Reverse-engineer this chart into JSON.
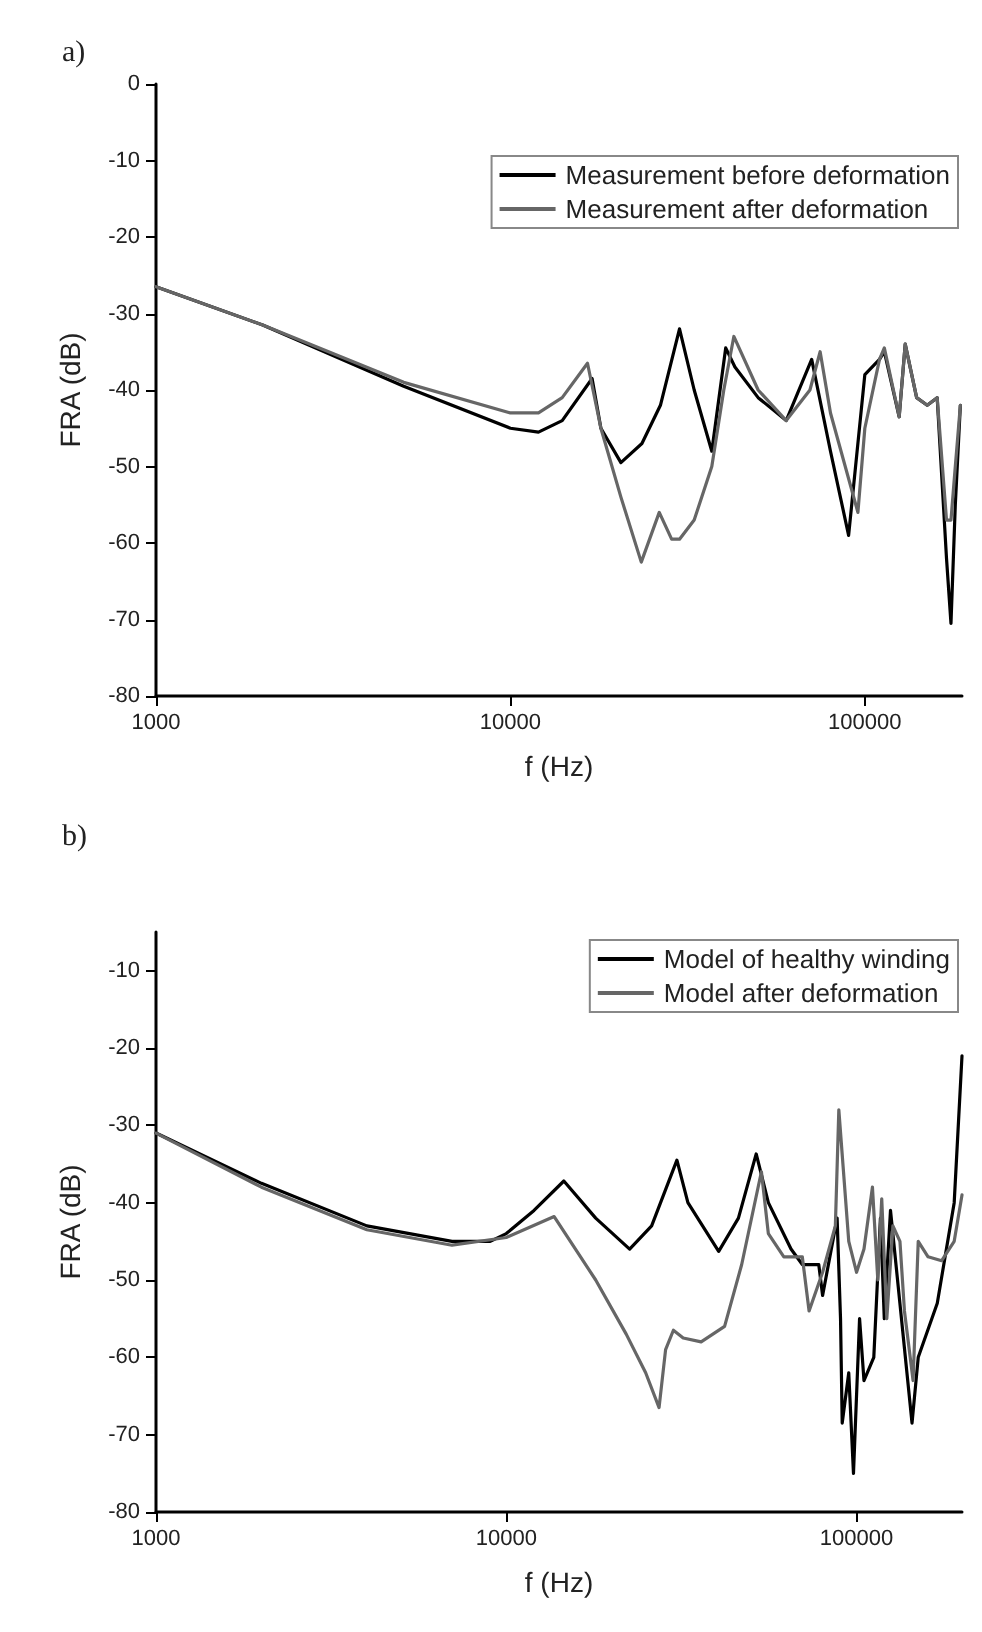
{
  "chart_data": [
    {
      "type": "line",
      "title": "a)",
      "xlabel": "f (Hz)",
      "ylabel": "FRA (dB)",
      "log": "x",
      "xlim": [
        1000,
        188000
      ],
      "xticks": [
        1000,
        10000,
        100000
      ],
      "ylim": [
        -80,
        0
      ],
      "yticks": [
        -80,
        -70,
        -60,
        -50,
        -40,
        -30,
        -20,
        -10,
        0
      ],
      "grid": false,
      "legend": "top right",
      "marker": "none",
      "line_style": "solid",
      "series": [
        {
          "name": "Measurement before deformation",
          "color": "#000000",
          "x": [
            1000,
            2000,
            5000,
            10000,
            12000,
            14000,
            17000,
            18000,
            20500,
            23500,
            26500,
            30000,
            33000,
            37000,
            40500,
            43000,
            50000,
            60000,
            70800,
            80000,
            90000,
            100000,
            110000,
            113500,
            125000,
            130000,
            140000,
            150000,
            160000,
            170000,
            175000,
            180000,
            186000
          ],
          "values": [
            -26.5,
            -31.5,
            -39.5,
            -45,
            -45.5,
            -44,
            -38.5,
            -45,
            -49.5,
            -47,
            -42,
            -32,
            -40,
            -48,
            -34.5,
            -37,
            -41,
            -44,
            -36,
            -48,
            -59,
            -38,
            -36,
            -35,
            -43.5,
            -34,
            -41,
            -42,
            -41,
            -62,
            -70.5,
            -55,
            -42
          ]
        },
        {
          "name": "Measurement after deformation",
          "color": "#666666",
          "x": [
            1000,
            2000,
            5000,
            10000,
            12000,
            14000,
            16500,
            18000,
            20500,
            23400,
            26300,
            28500,
            30000,
            33000,
            37000,
            40000,
            42700,
            50000,
            60000,
            70000,
            74800,
            80000,
            95600,
            100000,
            110000,
            113500,
            125000,
            130000,
            140000,
            150000,
            160000,
            170000,
            175000,
            180000,
            186000
          ],
          "values": [
            -26.5,
            -31.5,
            -39,
            -43,
            -43,
            -41,
            -36.5,
            -45,
            -54,
            -62.5,
            -56,
            -59.5,
            -59.5,
            -57,
            -50,
            -40,
            -33,
            -40,
            -44,
            -40,
            -35,
            -43,
            -56,
            -45,
            -36,
            -34.5,
            -43.5,
            -34,
            -41,
            -42,
            -41,
            -57,
            -57,
            -50,
            -42
          ]
        }
      ]
    },
    {
      "type": "line",
      "title": "b)",
      "xlabel": "f (Hz)",
      "ylabel": "FRA (dB)",
      "log": "x",
      "xlim": [
        1000,
        200000
      ],
      "xticks": [
        1000,
        10000,
        100000
      ],
      "ylim": [
        -80,
        -5
      ],
      "yticks": [
        -80,
        -70,
        -60,
        -50,
        -40,
        -30,
        -20,
        -10
      ],
      "grid": false,
      "legend": "top right",
      "marker": "none",
      "line_style": "solid",
      "series": [
        {
          "name": "Model of healthy winding",
          "color": "#000000",
          "x": [
            1000,
            2000,
            4000,
            7000,
            9000,
            10000,
            12000,
            14600,
            18000,
            22500,
            26000,
            30700,
            33000,
            40400,
            46000,
            51700,
            56000,
            65000,
            70000,
            78000,
            80000,
            88000,
            90000,
            91000,
            95000,
            98000,
            102000,
            105000,
            112000,
            117000,
            120000,
            125000,
            144000,
            150000,
            170000,
            190000,
            200000
          ],
          "values": [
            -31,
            -37.5,
            -43,
            -45,
            -45,
            -44,
            -41,
            -37.2,
            -42,
            -46,
            -43,
            -34.5,
            -40,
            -46.3,
            -42,
            -33.7,
            -40,
            -46,
            -48,
            -48,
            -52,
            -42,
            -55,
            -68.5,
            -62,
            -75,
            -55,
            -63,
            -60,
            -42,
            -55,
            -41,
            -68.5,
            -60,
            -53,
            -40,
            -21
          ]
        },
        {
          "name": "Model after deformation",
          "color": "#666666",
          "x": [
            1000,
            2000,
            4000,
            7000,
            10000,
            13700,
            18000,
            22000,
            25000,
            27300,
            28500,
            30000,
            32000,
            36000,
            42000,
            47000,
            53500,
            56000,
            62000,
            70000,
            73200,
            80000,
            87000,
            89000,
            95000,
            100000,
            105000,
            111000,
            115000,
            118000,
            122000,
            127000,
            133000,
            137000,
            145000,
            150000,
            160000,
            175000,
            190000,
            200000
          ],
          "values": [
            -31,
            -38,
            -43.5,
            -45.5,
            -44.5,
            -41.8,
            -50,
            -57,
            -62,
            -66.5,
            -59,
            -56.5,
            -57.5,
            -58,
            -56,
            -48,
            -36,
            -44,
            -47,
            -47,
            -54,
            -49,
            -43,
            -28,
            -45,
            -49,
            -46,
            -38,
            -50,
            -39.5,
            -55,
            -43,
            -45,
            -54,
            -63,
            -45,
            -47,
            -47.5,
            -45,
            -39
          ]
        }
      ]
    }
  ]
}
